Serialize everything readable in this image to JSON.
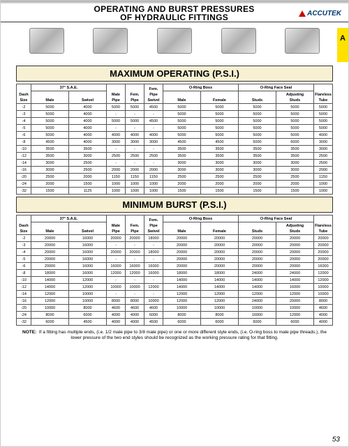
{
  "header": {
    "title_line1": "OPERATING AND BURST PRESSURES",
    "title_line2": "OF HYDRAULIC FITTINGS",
    "logo_text": "ACCUTEK"
  },
  "side_tab": "A",
  "section1_title": "MAXIMUM OPERATING (P.S.I.)",
  "section2_title": "MINIMUM BURST (P.S.I.)",
  "columns": {
    "dash": "Dash Size",
    "sae": "37° S.A.E.",
    "male": "Male",
    "swivel": "Swivel",
    "mpipe": "Male Pipe",
    "fpipe": "Fem. Pipe",
    "fpswivel": "Fem. Pipe Swivel",
    "oring": "O-Ring Boss",
    "omale": "Male",
    "ofemale": "Female",
    "oface": "O-Ring Face Seal",
    "studs": "Studs",
    "adjstuds": "Adjusting Studs",
    "flareless": "Flareless Tube"
  },
  "dash_sizes": [
    "-2",
    "-3",
    "-4",
    "-5",
    "-6",
    "-8",
    "-10",
    "-12",
    "-14",
    "-16",
    "-20",
    "-24",
    "-32"
  ],
  "operating": [
    [
      "5000",
      "4000",
      "5000",
      "5000",
      "4500",
      "5000",
      "5000",
      "5000",
      "5000",
      "5000"
    ],
    [
      "5000",
      "4000",
      "-",
      "-",
      "-",
      "5000",
      "5000",
      "5000",
      "5000",
      "5000"
    ],
    [
      "5000",
      "4000",
      "5000",
      "5000",
      "4500",
      "5000",
      "5000",
      "5000",
      "5000",
      "5000"
    ],
    [
      "5000",
      "4000",
      "-",
      "-",
      "-",
      "5000",
      "5000",
      "5000",
      "5000",
      "5000"
    ],
    [
      "5000",
      "4000",
      "4000",
      "4000",
      "4000",
      "5000",
      "5000",
      "5000",
      "5000",
      "4000"
    ],
    [
      "4500",
      "4000",
      "3000",
      "3000",
      "3000",
      "4500",
      "4500",
      "5000",
      "6000",
      "3000"
    ],
    [
      "3500",
      "3500",
      "-",
      "-",
      "-",
      "3500",
      "3500",
      "3500",
      "3500",
      "3000"
    ],
    [
      "3500",
      "3000",
      "2500",
      "2500",
      "2500",
      "3500",
      "3500",
      "3500",
      "3500",
      "2500"
    ],
    [
      "3000",
      "2500",
      "-",
      "-",
      "-",
      "3000",
      "3000",
      "3000",
      "3000",
      "2500"
    ],
    [
      "3000",
      "2500",
      "2000",
      "2000",
      "2000",
      "3000",
      "3000",
      "3000",
      "3000",
      "2000"
    ],
    [
      "2500",
      "2000",
      "1150",
      "1150",
      "1150",
      "2500",
      "2500",
      "2500",
      "2500",
      "1150"
    ],
    [
      "2000",
      "1500",
      "1000",
      "1000",
      "1000",
      "2000",
      "2000",
      "2000",
      "2000",
      "1000"
    ],
    [
      "1500",
      "1125",
      "1000",
      "1000",
      "1000",
      "1500",
      "1500",
      "1500",
      "1500",
      "1000"
    ]
  ],
  "burst": [
    [
      "20000",
      "16000",
      "20000",
      "20000",
      "18000",
      "20000",
      "20000",
      "20000",
      "20000",
      "20000"
    ],
    [
      "20000",
      "16000",
      "-",
      "-",
      "-",
      "20000",
      "20000",
      "20000",
      "20000",
      "20000"
    ],
    [
      "20000",
      "16000",
      "20000",
      "20000",
      "18000",
      "20000",
      "20000",
      "20000",
      "20000",
      "20000"
    ],
    [
      "20000",
      "16000",
      "-",
      "-",
      "-",
      "20000",
      "20000",
      "20000",
      "20000",
      "20000"
    ],
    [
      "20000",
      "16000",
      "16000",
      "16000",
      "16000",
      "20000",
      "20000",
      "20000",
      "20000",
      "16000"
    ],
    [
      "18000",
      "16000",
      "12000",
      "12000",
      "16000",
      "18000",
      "18000",
      "24000",
      "24000",
      "12000"
    ],
    [
      "14000",
      "12000",
      "-",
      "-",
      "-",
      "14000",
      "14000",
      "14000",
      "14000",
      "12000"
    ],
    [
      "14000",
      "12000",
      "10000",
      "10000",
      "12000",
      "14000",
      "14000",
      "14000",
      "16000",
      "10000"
    ],
    [
      "12000",
      "10000",
      "-",
      "-",
      "-",
      "12000",
      "12000",
      "12000",
      "12000",
      "10000"
    ],
    [
      "12000",
      "10000",
      "8000",
      "8000",
      "10000",
      "12000",
      "12000",
      "24000",
      "20000",
      "8000"
    ],
    [
      "10000",
      "8000",
      "4600",
      "4600",
      "4600",
      "10000",
      "10000",
      "10000",
      "10000",
      "4600"
    ],
    [
      "8000",
      "6000",
      "4000",
      "4000",
      "6000",
      "8000",
      "8000",
      "16000",
      "12000",
      "4000"
    ],
    [
      "6000",
      "4500",
      "4000",
      "4000",
      "4500",
      "6000",
      "6000",
      "6000",
      "6000",
      "4000"
    ]
  ],
  "note_label": "NOTE:",
  "note_text": "If a fitting has multiple ends, (i.e. 1/2 male pipe to 3/8 male pipe) or one or more different style ends, (i.e. O-ring boss to male pipe threads.), the lower pressure of the two end styles should be recognized as the working pressure rating for that fitting.",
  "page_number": "53",
  "styling": {
    "section_bar_bg": "#f7f0d3",
    "side_tab_bg": "#ffe100",
    "border_color": "#555555",
    "logo_color": "#003a70",
    "logo_triangle": "#cc0000"
  }
}
